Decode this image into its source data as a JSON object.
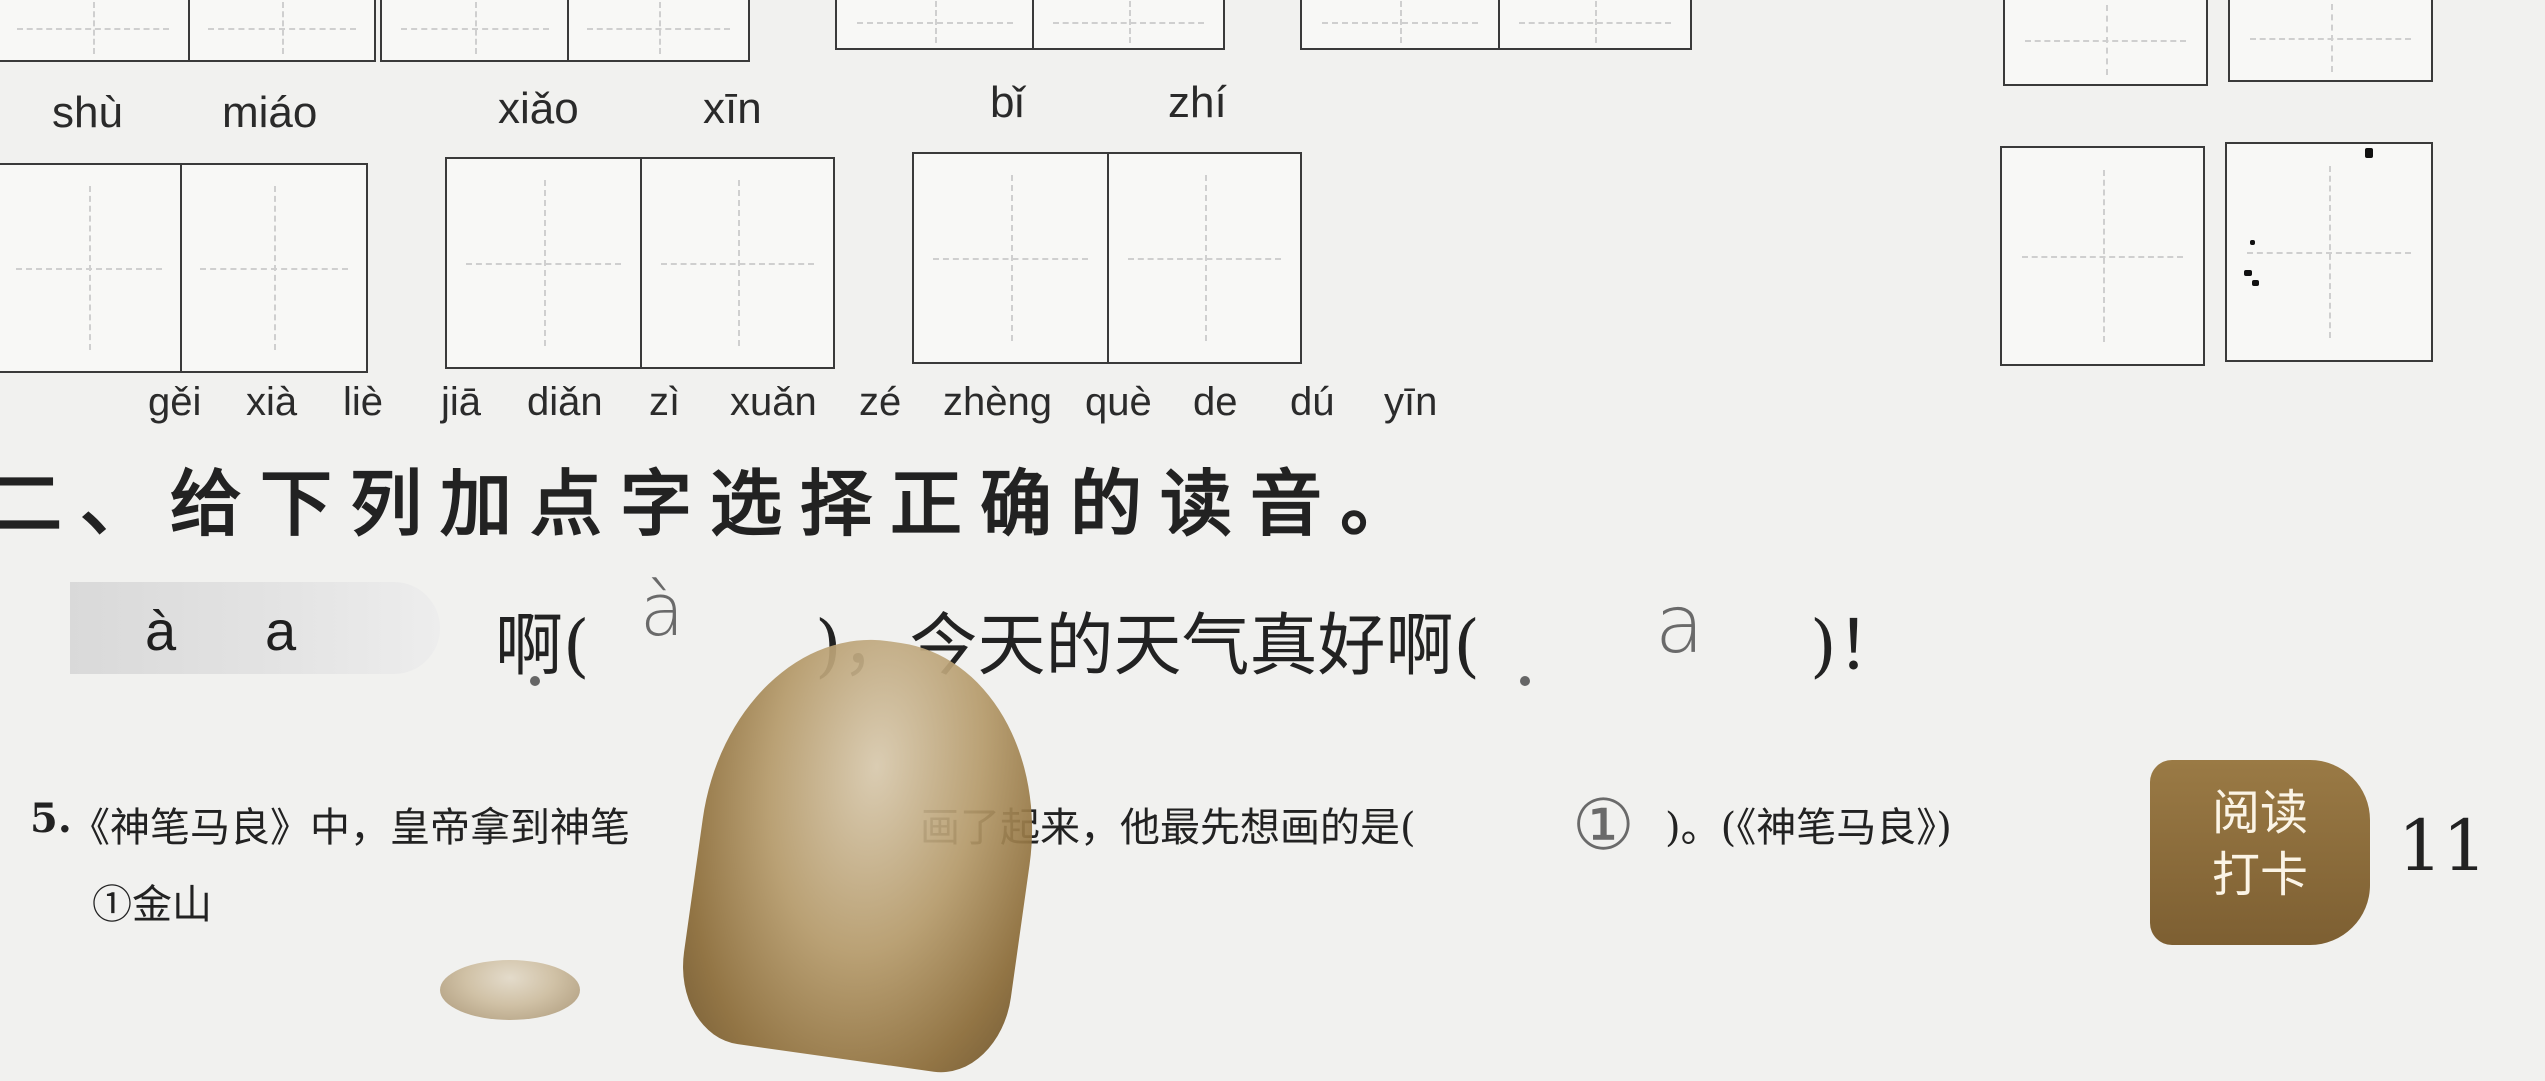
{
  "top_row_pinyin": [
    {
      "text": "shù"
    },
    {
      "text": "miáo"
    },
    {
      "text": "xiǎo"
    },
    {
      "text": "xīn"
    },
    {
      "text": "bǐ"
    },
    {
      "text": "zhí"
    }
  ],
  "section2": {
    "pinyin": [
      "gěi",
      "xià",
      "liè",
      "jiā",
      "diǎn",
      "zì",
      "xuǎn",
      "zé",
      "zhèng",
      "què",
      "de",
      "dú",
      "yīn"
    ],
    "heading": "二、给下列加点字选择正确的读音。",
    "options_label_1": "à",
    "options_label_2": "a",
    "sentence_part1": "啊(",
    "answer1": "à",
    "sentence_part2": ")，今天的天气真好啊(",
    "answer2": "a",
    "sentence_part3": ")！"
  },
  "question5": {
    "number": "5.",
    "text_before": "《神笔马良》中，皇帝拿到神笔",
    "text_after": "画了起来，他最先想画的是(",
    "answer": "①",
    "text_end": ")。(《神笔马良》)",
    "option1": "①金山"
  },
  "badge": {
    "line1": "阅读",
    "line2": "打卡"
  },
  "page_number": "11"
}
